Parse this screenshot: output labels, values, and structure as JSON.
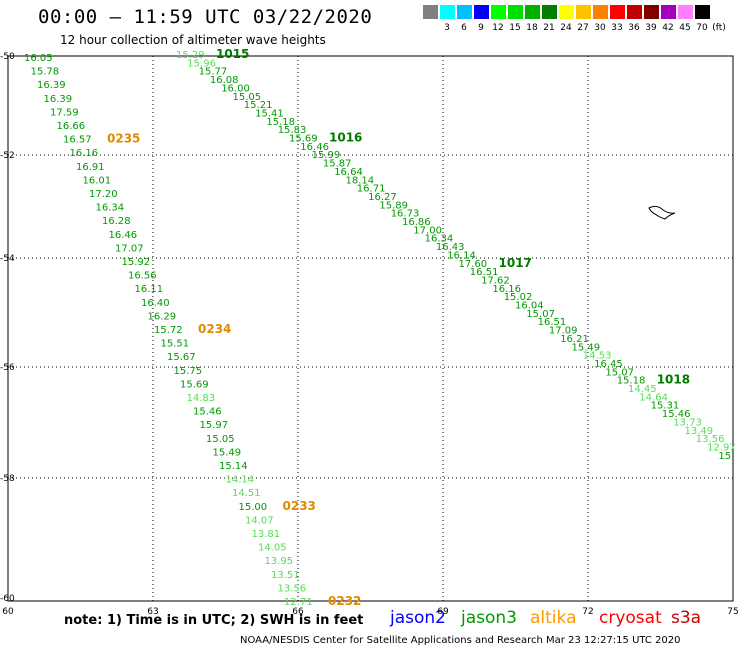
{
  "title": "00:00 – 11:59 UTC 03/22/2020",
  "subtitle": "12 hour collection of altimeter wave heights",
  "legend": {
    "unit": "(ft)",
    "items": [
      {
        "color": "#808080",
        "label": ""
      },
      {
        "color": "#00ffff",
        "label": "3"
      },
      {
        "color": "#00c0ff",
        "label": "6"
      },
      {
        "color": "#0000ff",
        "label": "9"
      },
      {
        "color": "#00ff00",
        "label": "12"
      },
      {
        "color": "#00e000",
        "label": "15"
      },
      {
        "color": "#00b000",
        "label": "18"
      },
      {
        "color": "#008000",
        "label": "21"
      },
      {
        "color": "#ffff00",
        "label": "24"
      },
      {
        "color": "#ffc000",
        "label": "27"
      },
      {
        "color": "#ff8000",
        "label": "30"
      },
      {
        "color": "#ff0000",
        "label": "33"
      },
      {
        "color": "#c00000",
        "label": "36"
      },
      {
        "color": "#800000",
        "label": "39"
      },
      {
        "color": "#a000c0",
        "label": "42"
      },
      {
        "color": "#ff80ff",
        "label": "45"
      },
      {
        "color": "#000000",
        "label": "70"
      }
    ]
  },
  "axes": {
    "lon_ticks": [
      "60",
      "63",
      "66",
      "69",
      "72",
      "75"
    ],
    "lat_ticks": [
      "-50",
      "-52",
      "-54",
      "-56",
      "-58",
      "-60"
    ]
  },
  "tracks": [
    {
      "name": "track-0235",
      "color": "#009a00",
      "time_label": "0235",
      "time_color": "#e08a00",
      "values": [
        {
          "v": "16.05",
          "c": "#009a00"
        },
        {
          "v": "15.78",
          "c": "#009a00"
        },
        {
          "v": "16.39",
          "c": "#009a00"
        },
        {
          "v": "16.39",
          "c": "#009a00"
        },
        {
          "v": "17.59",
          "c": "#009a00"
        },
        {
          "v": "16.66",
          "c": "#009a00"
        },
        {
          "v": "16.57",
          "c": "#009a00"
        },
        {
          "v": "16.16",
          "c": "#009a00"
        },
        {
          "v": "16.91",
          "c": "#009a00"
        },
        {
          "v": "16.01",
          "c": "#009a00"
        },
        {
          "v": "17.20",
          "c": "#009a00"
        },
        {
          "v": "16.34",
          "c": "#009a00"
        },
        {
          "v": "16.28",
          "c": "#009a00"
        },
        {
          "v": "16.46",
          "c": "#009a00"
        },
        {
          "v": "17.07",
          "c": "#009a00"
        },
        {
          "v": "15.92",
          "c": "#009a00"
        },
        {
          "v": "16.56",
          "c": "#009a00"
        },
        {
          "v": "16.11",
          "c": "#009a00"
        },
        {
          "v": "16.40",
          "c": "#009a00"
        },
        {
          "v": "16.29",
          "c": "#009a00"
        },
        {
          "v": "15.72",
          "c": "#009a00"
        },
        {
          "v": "15.51",
          "c": "#009a00"
        },
        {
          "v": "15.67",
          "c": "#009a00"
        },
        {
          "v": "15.75",
          "c": "#009a00"
        },
        {
          "v": "15.69",
          "c": "#009a00"
        },
        {
          "v": "14.83",
          "c": "#55dd55"
        },
        {
          "v": "15.46",
          "c": "#009a00"
        },
        {
          "v": "15.97",
          "c": "#009a00"
        },
        {
          "v": "15.05",
          "c": "#009a00"
        },
        {
          "v": "15.49",
          "c": "#009a00"
        },
        {
          "v": "15.14",
          "c": "#009a00"
        },
        {
          "v": "14.14",
          "c": "#55dd55"
        },
        {
          "v": "14.51",
          "c": "#55dd55"
        },
        {
          "v": "15.00",
          "c": "#009a00"
        },
        {
          "v": "14.07",
          "c": "#55dd55"
        },
        {
          "v": "13.81",
          "c": "#55dd55"
        },
        {
          "v": "14.05",
          "c": "#55dd55"
        },
        {
          "v": "13.95",
          "c": "#55dd55"
        },
        {
          "v": "13.51",
          "c": "#55dd55"
        },
        {
          "v": "13.56",
          "c": "#55dd55"
        },
        {
          "v": "12.71",
          "c": "#55dd55"
        }
      ],
      "time_labels": [
        {
          "text": "0235",
          "color": "#e08a00",
          "row": 6
        },
        {
          "text": "0234",
          "color": "#e08a00",
          "row": 20
        },
        {
          "text": "0233",
          "color": "#e08a00",
          "row": 33
        },
        {
          "text": "0232",
          "color": "#e08a00",
          "row": 40
        }
      ]
    },
    {
      "name": "track-1015",
      "values": [
        {
          "v": "15.29",
          "c": "#55dd55"
        },
        {
          "v": "15.96",
          "c": "#55dd55"
        },
        {
          "v": "15.77",
          "c": "#009a00"
        },
        {
          "v": "16.08",
          "c": "#009a00"
        },
        {
          "v": "16.00",
          "c": "#009a00"
        },
        {
          "v": "15.05",
          "c": "#009a00"
        },
        {
          "v": "15.21",
          "c": "#009a00"
        },
        {
          "v": "15.41",
          "c": "#009a00"
        },
        {
          "v": "15.18",
          "c": "#009a00"
        },
        {
          "v": "15.83",
          "c": "#009a00"
        },
        {
          "v": "15.69",
          "c": "#009a00"
        },
        {
          "v": "16.46",
          "c": "#009a00"
        },
        {
          "v": "15.99",
          "c": "#009a00"
        },
        {
          "v": "15.87",
          "c": "#009a00"
        },
        {
          "v": "16.64",
          "c": "#009a00"
        },
        {
          "v": "18.14",
          "c": "#009a00"
        },
        {
          "v": "16.71",
          "c": "#009a00"
        },
        {
          "v": "16.27",
          "c": "#009a00"
        },
        {
          "v": "15.89",
          "c": "#009a00"
        },
        {
          "v": "16.73",
          "c": "#009a00"
        },
        {
          "v": "16.86",
          "c": "#009a00"
        },
        {
          "v": "17.00",
          "c": "#009a00"
        },
        {
          "v": "16.34",
          "c": "#009a00"
        },
        {
          "v": "16.43",
          "c": "#009a00"
        },
        {
          "v": "16.14",
          "c": "#009a00"
        },
        {
          "v": "17.60",
          "c": "#009a00"
        },
        {
          "v": "16.51",
          "c": "#009a00"
        },
        {
          "v": "17.62",
          "c": "#009a00"
        },
        {
          "v": "16.16",
          "c": "#009a00"
        },
        {
          "v": "15.02",
          "c": "#009a00"
        },
        {
          "v": "16.04",
          "c": "#009a00"
        },
        {
          "v": "15.07",
          "c": "#009a00"
        },
        {
          "v": "16.51",
          "c": "#009a00"
        },
        {
          "v": "17.09",
          "c": "#009a00"
        },
        {
          "v": "16.21",
          "c": "#009a00"
        },
        {
          "v": "15.49",
          "c": "#009a00"
        },
        {
          "v": "14.53",
          "c": "#55dd55"
        },
        {
          "v": "16.45",
          "c": "#009a00"
        },
        {
          "v": "15.07",
          "c": "#009a00"
        },
        {
          "v": "15.18",
          "c": "#009a00"
        },
        {
          "v": "14.45",
          "c": "#55dd55"
        },
        {
          "v": "14.64",
          "c": "#55dd55"
        },
        {
          "v": "15.31",
          "c": "#009a00"
        },
        {
          "v": "15.46",
          "c": "#009a00"
        },
        {
          "v": "13.73",
          "c": "#55dd55"
        },
        {
          "v": "13.49",
          "c": "#55dd55"
        },
        {
          "v": "13.56",
          "c": "#55dd55"
        },
        {
          "v": "12.97",
          "c": "#55dd55"
        },
        {
          "v": "15",
          "c": "#009a00"
        }
      ],
      "time_labels": [
        {
          "text": "1015",
          "color": "#007a00",
          "row": 0
        },
        {
          "text": "1016",
          "color": "#007a00",
          "row": 10
        },
        {
          "text": "1017",
          "color": "#007a00",
          "row": 25
        },
        {
          "text": "1018",
          "color": "#007a00",
          "row": 39
        }
      ]
    }
  ],
  "note": "note:  1) Time is in UTC;  2) SWH is in feet",
  "satellites": [
    {
      "name": "jason2",
      "color": "#0000ff"
    },
    {
      "name": "jason3",
      "color": "#009a00"
    },
    {
      "name": "altika",
      "color": "#ff9900"
    },
    {
      "name": "cryosat",
      "color": "#ff0000"
    },
    {
      "name": "s3a",
      "color": "#cc0000"
    }
  ],
  "credit": "NOAA/NESDIS Center for Satellite Applications and Research    Mar 23 12:27:15 UTC 2020"
}
